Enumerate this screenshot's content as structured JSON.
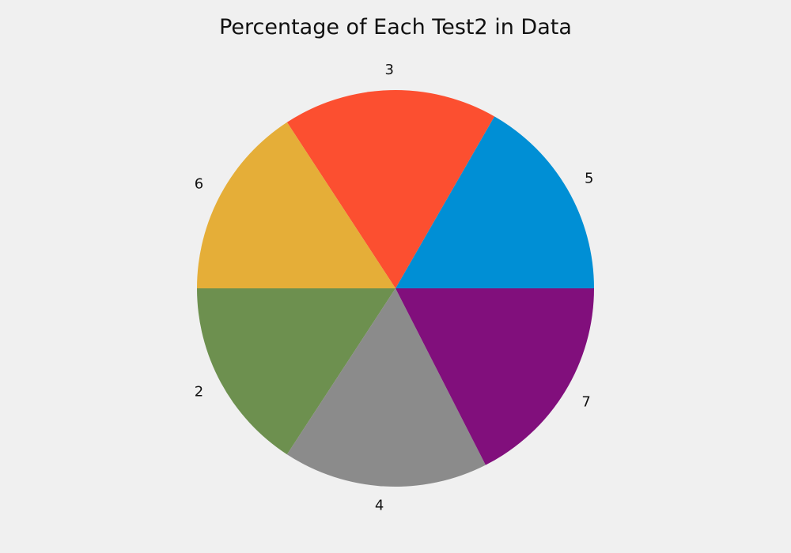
{
  "chart_data": {
    "type": "pie",
    "title": "Percentage of Each Test2 in Data",
    "slices": [
      {
        "label": "5",
        "value": 16.7,
        "color": "#008fd5"
      },
      {
        "label": "3",
        "value": 17.5,
        "color": "#fc4f30"
      },
      {
        "label": "6",
        "value": 15.8,
        "color": "#e5ae38"
      },
      {
        "label": "2",
        "value": 15.8,
        "color": "#6d904f"
      },
      {
        "label": "4",
        "value": 16.7,
        "color": "#8b8b8b"
      },
      {
        "label": "7",
        "value": 17.5,
        "color": "#810f7c"
      }
    ],
    "start_angle_deg": 0,
    "direction": "counterclockwise",
    "legend": "none",
    "background": "#f0f0f0"
  }
}
